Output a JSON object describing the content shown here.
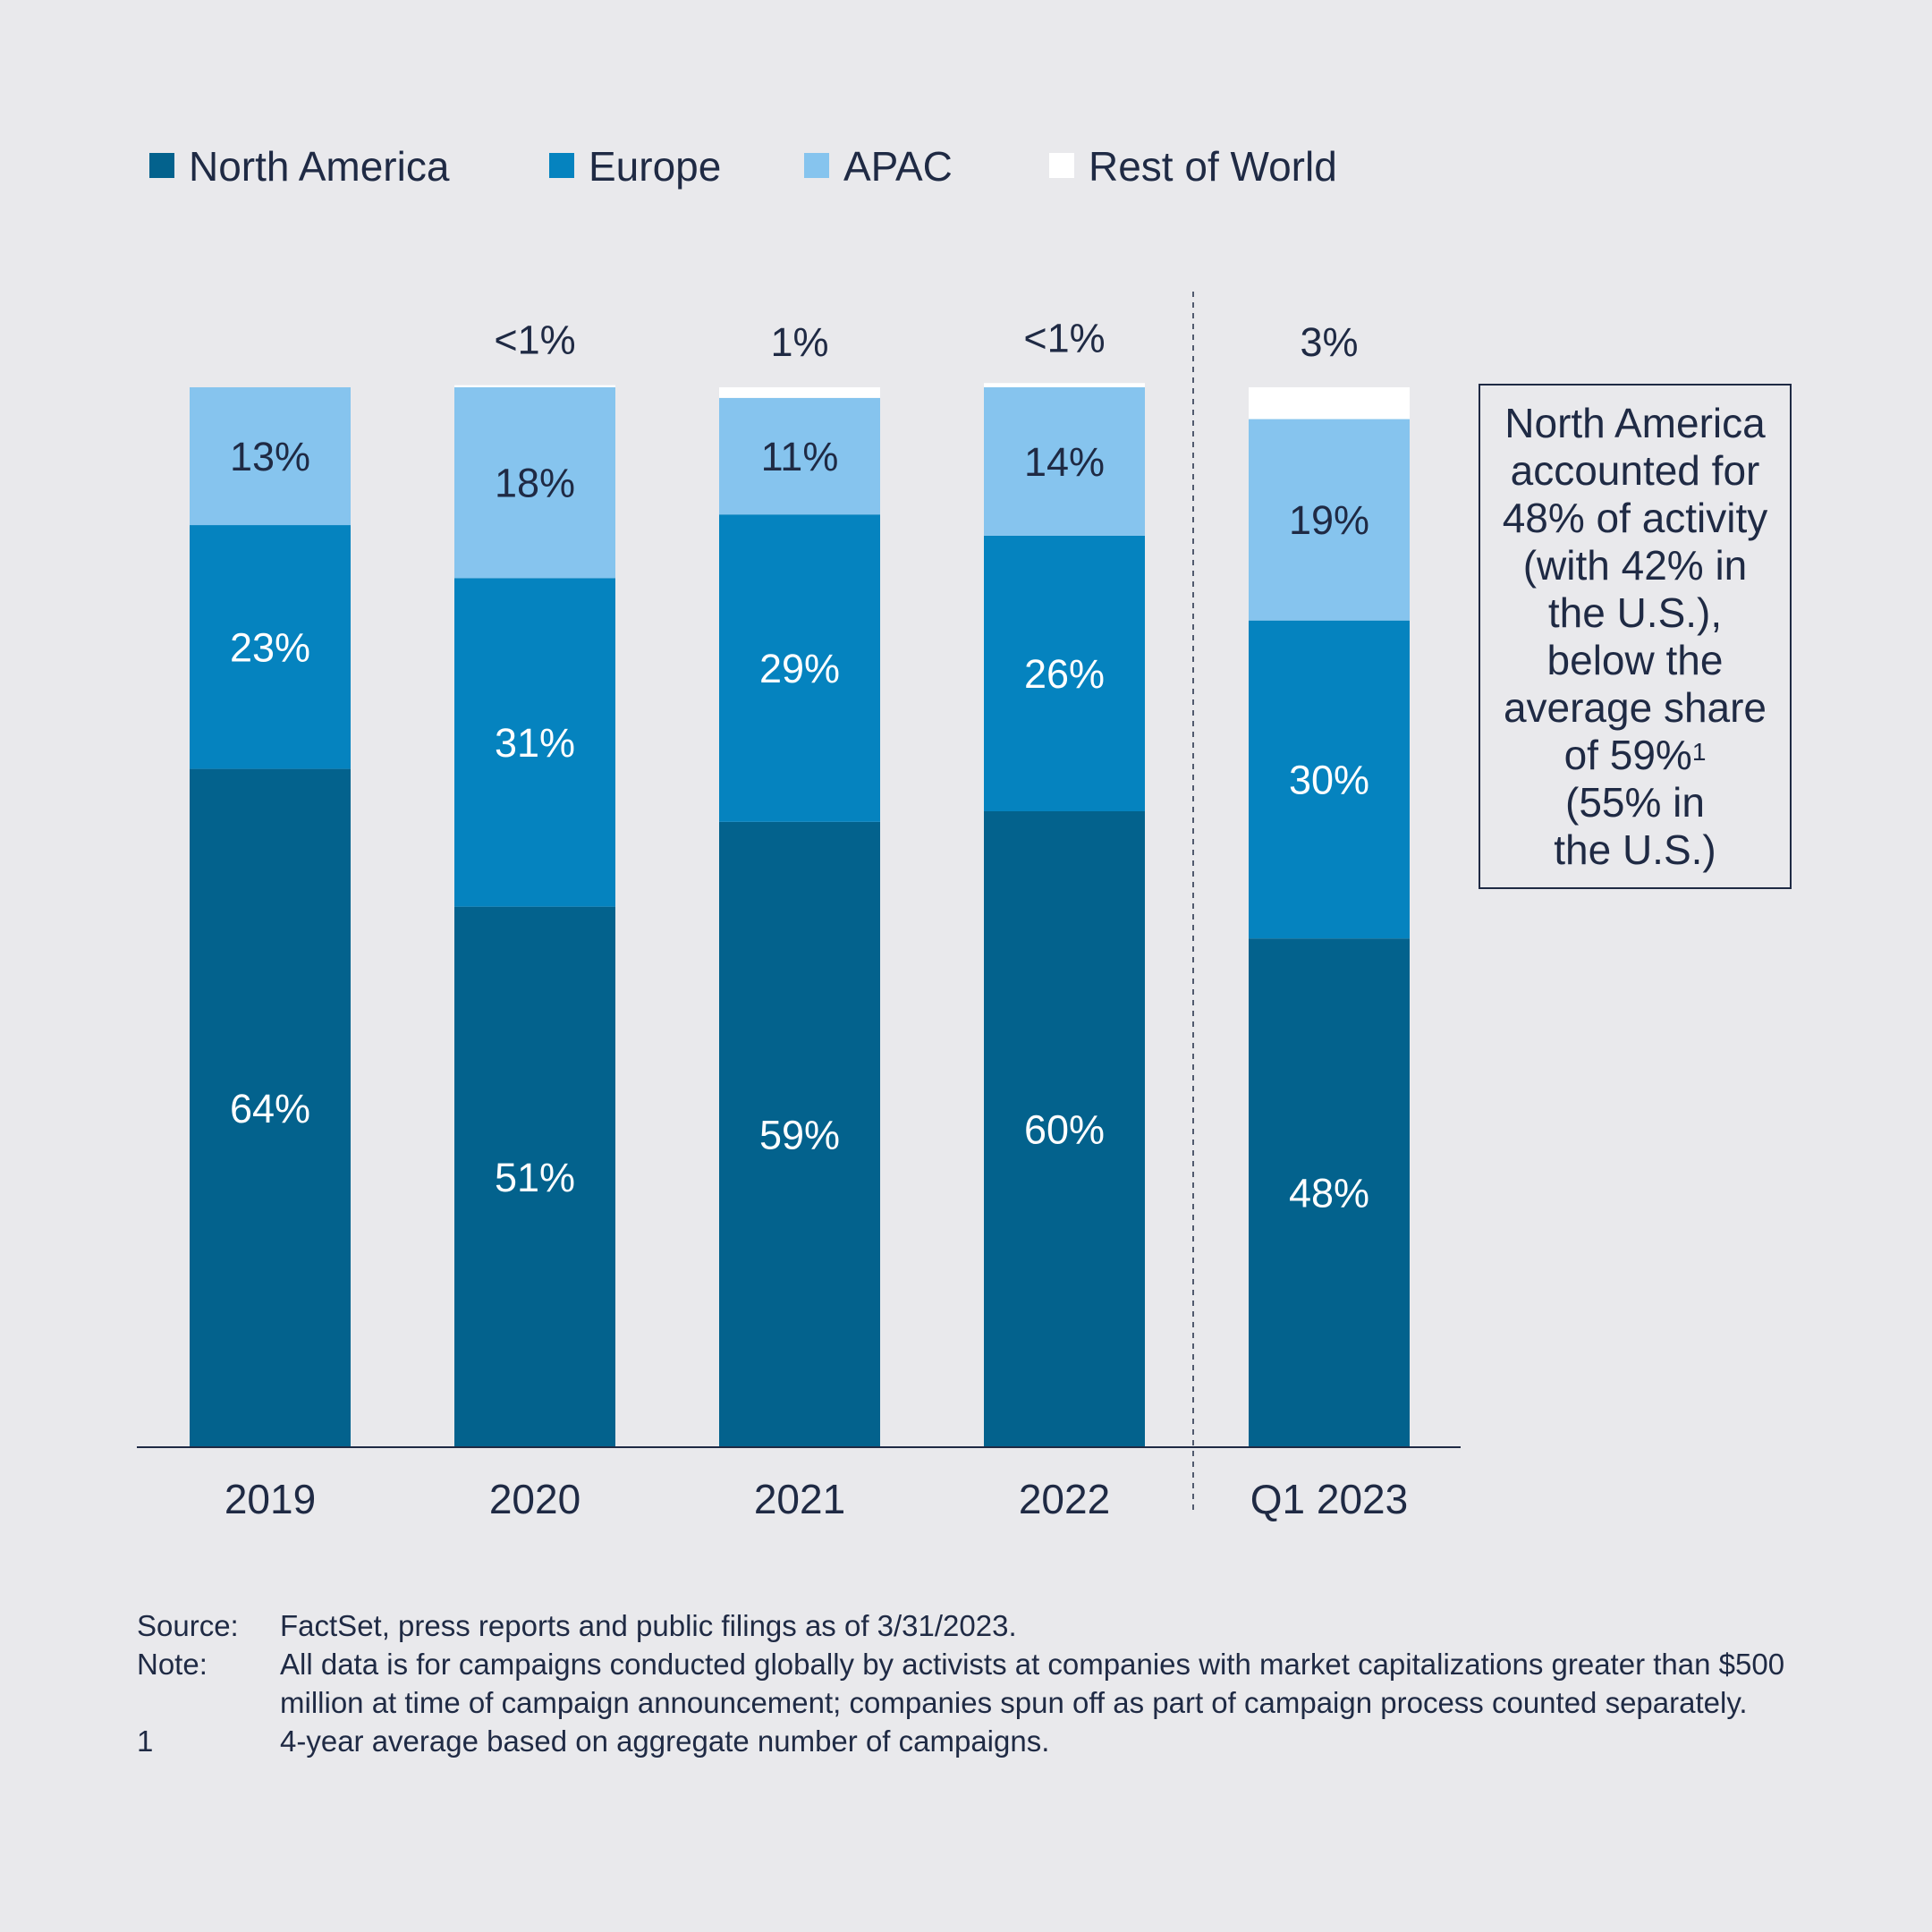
{
  "chart_data": {
    "type": "bar",
    "stacked": true,
    "categories": [
      "2019",
      "2020",
      "2021",
      "2022",
      "Q1 2023"
    ],
    "series": [
      {
        "name": "North America",
        "color": "#03628d",
        "values": [
          64,
          51,
          59,
          60,
          48
        ],
        "labels": [
          "64%",
          "51%",
          "59%",
          "60%",
          "48%"
        ]
      },
      {
        "name": "Europe",
        "color": "#0583bf",
        "values": [
          23,
          31,
          29,
          26,
          30
        ],
        "labels": [
          "23%",
          "31%",
          "29%",
          "26%",
          "30%"
        ]
      },
      {
        "name": "APAC",
        "color": "#86c4ee",
        "values": [
          13,
          18,
          11,
          14,
          19
        ],
        "labels": [
          "13%",
          "18%",
          "11%",
          "14%",
          "19%"
        ]
      },
      {
        "name": "Rest of World",
        "color": "#ffffff",
        "values": [
          0,
          0.2,
          1,
          0.4,
          3
        ],
        "labels": [
          "",
          "<1%",
          "1%",
          "<1%",
          "3%"
        ]
      }
    ],
    "ylim": [
      0,
      100
    ],
    "legend_position": "top-left",
    "separator_before_category": "Q1 2023",
    "grid": false
  },
  "callout": {
    "lines": [
      "North America",
      "accounted for",
      "48% of activity",
      "(with 42% in",
      "the U.S.),",
      "below the",
      "average share",
      "of 59%",
      "(55% in",
      "the U.S.)"
    ],
    "superscript": "1"
  },
  "notes": [
    {
      "key": "Source:",
      "text": "FactSet, press reports and public filings as of 3/31/2023."
    },
    {
      "key": "Note:",
      "text": "All data is for campaigns conducted globally by activists at companies with market capitalizations greater than $500 million at time of campaign announcement; companies spun off as part of campaign process counted separately."
    },
    {
      "key": "1",
      "text": "4-year average based on aggregate number of campaigns."
    }
  ]
}
